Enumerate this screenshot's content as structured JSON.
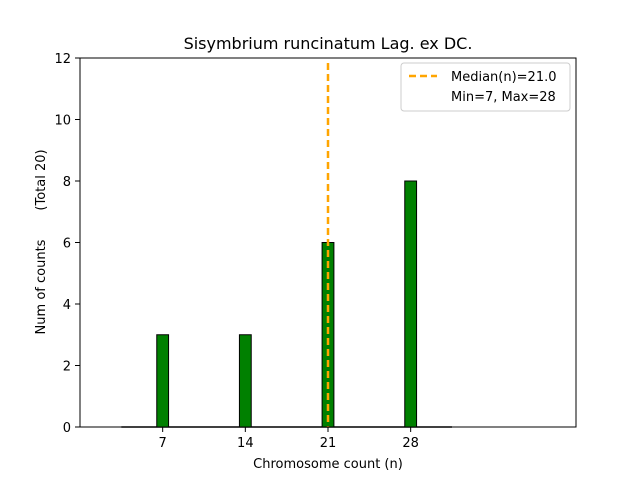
{
  "chart_data": {
    "type": "bar",
    "title": "Sisymbrium runcinatum Lag. ex DC.",
    "xlabel": "Chromosome count (n)",
    "ylabel_main": "Num of counts",
    "ylabel_total": "(Total 20)",
    "x": [
      7,
      14,
      21,
      28
    ],
    "x_tick_labels": [
      "7",
      "14",
      "21",
      "28"
    ],
    "values": [
      3,
      3,
      6,
      8
    ],
    "bar_width": 1,
    "xlim": [
      0,
      42
    ],
    "ylim": [
      0,
      12
    ],
    "y_ticks": [
      0,
      2,
      4,
      6,
      8,
      10,
      12
    ],
    "y_tick_labels": [
      "0",
      "2",
      "4",
      "6",
      "8",
      "10",
      "12"
    ],
    "median": 21.0,
    "legend": {
      "placement": "top-right",
      "median_label": "Median(n)=21.0",
      "range_label": "Min=7, Max=28"
    },
    "colors": {
      "bar_fill": "#008000",
      "bar_edge": "#000000",
      "median_line": "#FFA500"
    }
  }
}
